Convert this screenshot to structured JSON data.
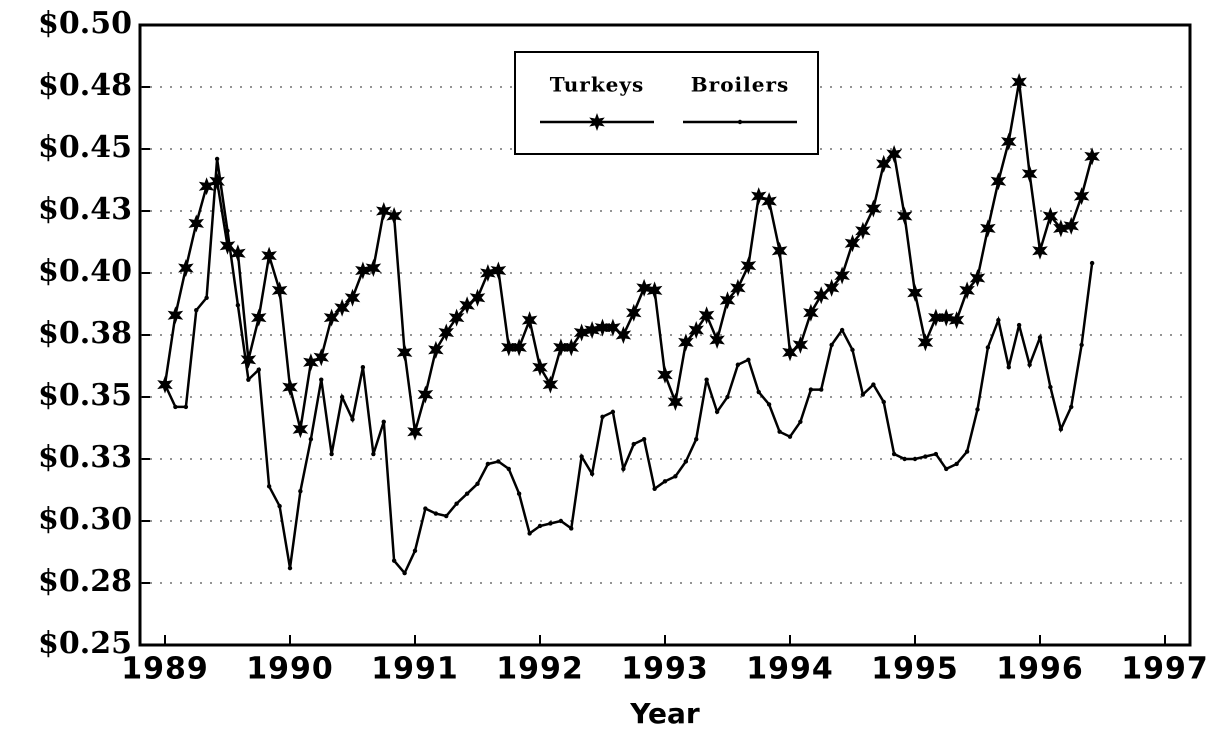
{
  "chart_data": {
    "type": "line",
    "x_label": "Year",
    "x": [
      1989,
      1989.083,
      1989.167,
      1989.25,
      1989.333,
      1989.417,
      1989.5,
      1989.583,
      1989.667,
      1989.75,
      1989.833,
      1989.917,
      1990,
      1990.083,
      1990.167,
      1990.25,
      1990.333,
      1990.417,
      1990.5,
      1990.583,
      1990.667,
      1990.75,
      1990.833,
      1990.917,
      1991,
      1991.083,
      1991.167,
      1991.25,
      1991.333,
      1991.417,
      1991.5,
      1991.583,
      1991.667,
      1991.75,
      1991.833,
      1991.917,
      1992,
      1992.083,
      1992.167,
      1992.25,
      1992.333,
      1992.417,
      1992.5,
      1992.583,
      1992.667,
      1992.75,
      1992.833,
      1992.917,
      1993,
      1993.083,
      1993.167,
      1993.25,
      1993.333,
      1993.417,
      1993.5,
      1993.583,
      1993.667,
      1993.75,
      1993.833,
      1993.917,
      1994,
      1994.083,
      1994.167,
      1994.25,
      1994.333,
      1994.417,
      1994.5,
      1994.583,
      1994.667,
      1994.75,
      1994.833,
      1994.917,
      1995,
      1995.083,
      1995.167,
      1995.25,
      1995.333,
      1995.417,
      1995.5,
      1995.583,
      1995.667,
      1995.75,
      1995.833,
      1995.917,
      1996,
      1996.083,
      1996.167,
      1996.25,
      1996.333,
      1996.417
    ],
    "series": [
      {
        "name": "Turkeys",
        "color": "#000000",
        "marker": "star",
        "values": [
          0.355,
          0.383,
          0.402,
          0.42,
          0.435,
          0.437,
          0.411,
          0.408,
          0.365,
          0.382,
          0.407,
          0.393,
          0.354,
          0.337,
          0.364,
          0.366,
          0.382,
          0.386,
          0.39,
          0.401,
          0.402,
          0.425,
          0.423,
          0.368,
          0.336,
          0.351,
          0.369,
          0.376,
          0.382,
          0.387,
          0.39,
          0.4,
          0.401,
          0.37,
          0.37,
          0.381,
          0.362,
          0.355,
          0.37,
          0.37,
          0.376,
          0.377,
          0.378,
          0.378,
          0.375,
          0.384,
          0.394,
          0.393,
          0.359,
          0.348,
          0.372,
          0.377,
          0.383,
          0.373,
          0.389,
          0.394,
          0.403,
          0.431,
          0.429,
          0.409,
          0.368,
          0.371,
          0.384,
          0.391,
          0.394,
          0.399,
          0.412,
          0.417,
          0.426,
          0.444,
          0.448,
          0.423,
          0.392,
          0.372,
          0.382,
          0.382,
          0.381,
          0.393,
          0.398,
          0.418,
          0.437,
          0.453,
          0.477,
          0.44,
          0.409,
          0.423,
          0.418,
          0.419,
          0.431,
          0.447
        ]
      },
      {
        "name": "Broilers",
        "color": "#000000",
        "marker": "dot",
        "values": [
          0.355,
          0.346,
          0.346,
          0.385,
          0.39,
          0.446,
          0.417,
          0.387,
          0.357,
          0.361,
          0.314,
          0.306,
          0.281,
          0.312,
          0.333,
          0.357,
          0.327,
          0.35,
          0.341,
          0.362,
          0.327,
          0.34,
          0.284,
          0.279,
          0.288,
          0.305,
          0.303,
          0.302,
          0.307,
          0.311,
          0.315,
          0.323,
          0.324,
          0.321,
          0.311,
          0.295,
          0.298,
          0.299,
          0.3,
          0.297,
          0.326,
          0.319,
          0.342,
          0.344,
          0.321,
          0.331,
          0.333,
          0.313,
          0.316,
          0.318,
          0.324,
          0.333,
          0.357,
          0.344,
          0.35,
          0.363,
          0.365,
          0.352,
          0.347,
          0.336,
          0.334,
          0.34,
          0.353,
          0.353,
          0.371,
          0.377,
          0.369,
          0.351,
          0.355,
          0.348,
          0.327,
          0.325,
          0.325,
          0.326,
          0.327,
          0.321,
          0.323,
          0.328,
          0.345,
          0.37,
          0.381,
          0.362,
          0.379,
          0.363,
          0.374,
          0.354,
          0.337,
          0.346,
          0.371,
          0.404
        ]
      }
    ],
    "xlim": [
      1988.8,
      1997.2
    ],
    "xticks": [
      1989,
      1990,
      1991,
      1992,
      1993,
      1994,
      1995,
      1996,
      1997
    ],
    "ylim": [
      0.25,
      0.5
    ],
    "yticks": [
      {
        "value": 0.25,
        "label": "$0.25"
      },
      {
        "value": 0.275,
        "label": "$0.28"
      },
      {
        "value": 0.3,
        "label": "$0.30"
      },
      {
        "value": 0.325,
        "label": "$0.33"
      },
      {
        "value": 0.35,
        "label": "$0.35"
      },
      {
        "value": 0.375,
        "label": "$0.38"
      },
      {
        "value": 0.4,
        "label": "$0.40"
      },
      {
        "value": 0.425,
        "label": "$0.43"
      },
      {
        "value": 0.45,
        "label": "$0.45"
      },
      {
        "value": 0.475,
        "label": "$0.48"
      },
      {
        "value": 0.5,
        "label": "$0.50"
      }
    ],
    "grid": true,
    "legend": "top"
  }
}
